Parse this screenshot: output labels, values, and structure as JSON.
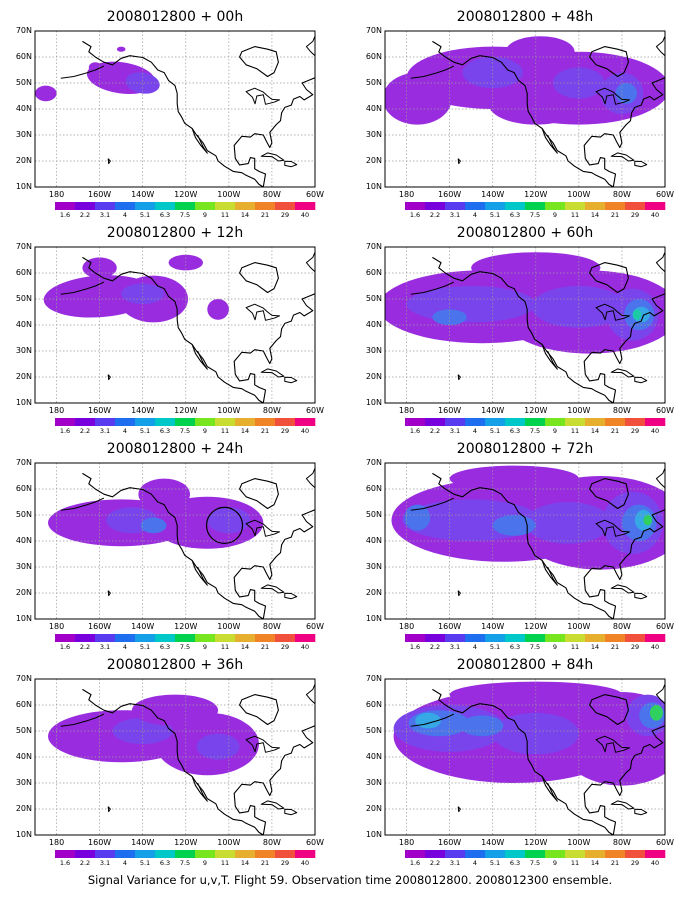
{
  "caption": "Signal Variance for u,v,T. Flight 59. Observation time 2008012800. 2008012300 ensemble.",
  "panels": [
    {
      "title": "2008012800 + 00h"
    },
    {
      "title": "2008012800 + 48h"
    },
    {
      "title": "2008012800 + 12h"
    },
    {
      "title": "2008012800 + 60h"
    },
    {
      "title": "2008012800 + 24h"
    },
    {
      "title": "2008012800 + 72h"
    },
    {
      "title": "2008012800 + 36h"
    },
    {
      "title": "2008012800 + 84h"
    }
  ],
  "lat_labels": [
    "70N",
    "60N",
    "50N",
    "40N",
    "30N",
    "20N",
    "10N"
  ],
  "lon_labels": [
    "180",
    "160W",
    "140W",
    "120W",
    "100W",
    "80W",
    "60W"
  ],
  "colorbar": {
    "levels": [
      "1.6",
      "2.2",
      "3.1",
      "4",
      "5.1",
      "6.3",
      "7.5",
      "9",
      "11",
      "14",
      "21",
      "29",
      "40"
    ],
    "colors": [
      "#a000c8",
      "#7800dc",
      "#5a3cf0",
      "#1e6ef0",
      "#14a0e6",
      "#00c8c8",
      "#00d250",
      "#78e61e",
      "#c8dc32",
      "#e6af2d",
      "#f08228",
      "#f0503c",
      "#f00082"
    ]
  },
  "map_colors": {
    "land": "#ffffff",
    "outline": "#000000",
    "grid": "#9a9a9a"
  },
  "shading_colors": {
    "low": "#9a2ce0",
    "mid": "#7a44ec",
    "blue": "#4b73ec",
    "cyan": "#36a8e6",
    "teal": "#1ccaa6",
    "green": "#30d060"
  }
}
